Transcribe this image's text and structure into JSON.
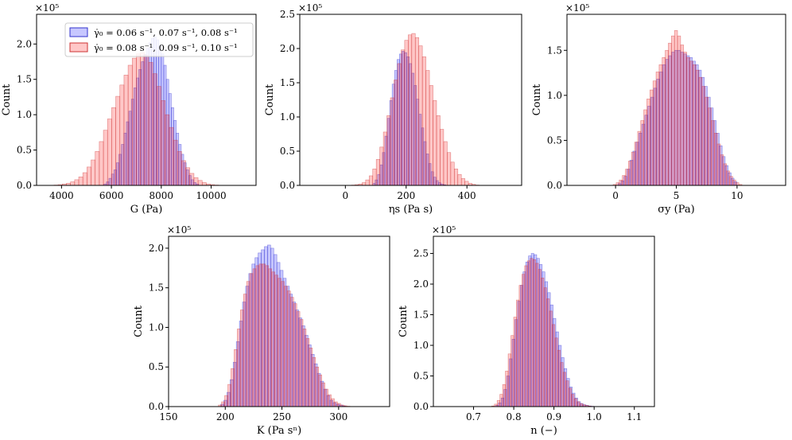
{
  "colors": {
    "blue_fill": "#0000ff",
    "blue_edge": "#3333cc",
    "red_fill": "#ff0000",
    "red_edge": "#cc3333",
    "fill_opacity": 0.22
  },
  "legend": {
    "location": "upper-right of first panel",
    "entries": [
      {
        "series": "blue",
        "label": "γ̇₀ = 0.06 s⁻¹, 0.07 s⁻¹, 0.08 s⁻¹"
      },
      {
        "series": "red",
        "label": "γ̇₀ = 0.08 s⁻¹, 0.09 s⁻¹, 0.10 s⁻¹"
      }
    ]
  },
  "chart_data": [
    {
      "type": "bar",
      "subtype": "histogram",
      "xlabel": "G (Pa)",
      "ylabel": "Count",
      "multiplier": "×10⁵",
      "xlim": [
        3000,
        11800
      ],
      "ylim": [
        0,
        2.42
      ],
      "xticks": [
        4000,
        6000,
        8000,
        10000
      ],
      "xtick_labels": [
        "4000",
        "6000",
        "8000",
        "10000"
      ],
      "yticks": [
        0.0,
        0.5,
        1.0,
        1.5,
        2.0
      ],
      "ytick_labels": [
        "0.0",
        "0.5",
        "1.0",
        "1.5",
        "2.0"
      ],
      "series": [
        {
          "name": "blue",
          "edges_range": [
            5700,
            9500
          ],
          "bins": 38,
          "values": [
            0.02,
            0.05,
            0.1,
            0.16,
            0.22,
            0.32,
            0.44,
            0.58,
            0.74,
            0.9,
            1.05,
            1.22,
            1.38,
            1.52,
            1.64,
            1.75,
            1.85,
            1.94,
            2.02,
            2.08,
            2.1,
            2.06,
            1.98,
            1.86,
            1.7,
            1.5,
            1.3,
            1.1,
            0.92,
            0.74,
            0.58,
            0.44,
            0.32,
            0.22,
            0.14,
            0.08,
            0.04,
            0.02
          ]
        },
        {
          "name": "red",
          "edges_range": [
            3700,
            10300
          ],
          "bins": 40,
          "values": [
            0.005,
            0.01,
            0.02,
            0.03,
            0.05,
            0.08,
            0.12,
            0.18,
            0.26,
            0.36,
            0.48,
            0.62,
            0.78,
            0.94,
            1.1,
            1.26,
            1.42,
            1.56,
            1.7,
            1.8,
            1.86,
            1.88,
            1.84,
            1.74,
            1.58,
            1.4,
            1.2,
            1.0,
            0.82,
            0.64,
            0.48,
            0.35,
            0.25,
            0.17,
            0.11,
            0.07,
            0.04,
            0.02,
            0.01,
            0.005
          ]
        }
      ]
    },
    {
      "type": "bar",
      "subtype": "histogram",
      "xlabel": "ηs (Pa s)",
      "ylabel": "Count",
      "multiplier": "×10⁵",
      "xlim": [
        -150,
        580
      ],
      "ylim": [
        0,
        2.5
      ],
      "xticks": [
        0,
        200,
        400
      ],
      "xtick_labels": [
        "0",
        "200",
        "400"
      ],
      "yticks": [
        0.0,
        0.5,
        1.0,
        1.5,
        2.0,
        2.5
      ],
      "ytick_labels": [
        "0.0",
        "0.5",
        "1.0",
        "1.5",
        "2.0",
        "2.5"
      ],
      "series": [
        {
          "name": "blue",
          "edges_range": [
            90,
            330
          ],
          "bins": 30,
          "values": [
            0.03,
            0.08,
            0.16,
            0.3,
            0.48,
            0.72,
            0.98,
            1.24,
            1.48,
            1.68,
            1.84,
            1.92,
            1.96,
            1.94,
            1.88,
            1.78,
            1.64,
            1.46,
            1.26,
            1.04,
            0.84,
            0.64,
            0.46,
            0.32,
            0.2,
            0.12,
            0.07,
            0.04,
            0.02,
            0.01
          ]
        },
        {
          "name": "red",
          "edges_range": [
            20,
            440
          ],
          "bins": 36,
          "values": [
            0.005,
            0.01,
            0.02,
            0.04,
            0.08,
            0.14,
            0.24,
            0.38,
            0.56,
            0.78,
            1.02,
            1.28,
            1.54,
            1.78,
            1.98,
            2.12,
            2.2,
            2.22,
            2.16,
            2.04,
            1.88,
            1.68,
            1.46,
            1.24,
            1.02,
            0.82,
            0.64,
            0.48,
            0.34,
            0.24,
            0.16,
            0.1,
            0.06,
            0.03,
            0.015,
            0.005
          ]
        }
      ]
    },
    {
      "type": "bar",
      "subtype": "histogram",
      "xlabel": "σy (Pa)",
      "ylabel": "Count",
      "multiplier": "×10⁵",
      "xlim": [
        -4,
        14
      ],
      "ylim": [
        0,
        1.9
      ],
      "xticks": [
        0,
        5,
        10
      ],
      "xtick_labels": [
        "0",
        "5",
        "10"
      ],
      "yticks": [
        0.0,
        0.5,
        1.0,
        1.5
      ],
      "ytick_labels": [
        "0.0",
        "0.5",
        "1.0",
        "1.5"
      ],
      "series": [
        {
          "name": "blue",
          "edges_range": [
            0.2,
            10.0
          ],
          "bins": 40,
          "values": [
            0.02,
            0.05,
            0.1,
            0.18,
            0.28,
            0.38,
            0.48,
            0.58,
            0.68,
            0.78,
            0.88,
            0.98,
            1.08,
            1.18,
            1.26,
            1.34,
            1.4,
            1.44,
            1.48,
            1.5,
            1.5,
            1.48,
            1.46,
            1.44,
            1.42,
            1.38,
            1.34,
            1.28,
            1.2,
            1.1,
            0.98,
            0.86,
            0.72,
            0.58,
            0.44,
            0.32,
            0.22,
            0.14,
            0.08,
            0.04
          ]
        },
        {
          "name": "red",
          "edges_range": [
            -0.2,
            10.4
          ],
          "bins": 42,
          "values": [
            0.01,
            0.03,
            0.06,
            0.11,
            0.18,
            0.27,
            0.37,
            0.48,
            0.6,
            0.72,
            0.84,
            0.96,
            1.06,
            1.16,
            1.26,
            1.34,
            1.42,
            1.5,
            1.58,
            1.66,
            1.72,
            1.66,
            1.56,
            1.48,
            1.42,
            1.38,
            1.34,
            1.28,
            1.2,
            1.1,
            0.98,
            0.86,
            0.72,
            0.58,
            0.46,
            0.34,
            0.24,
            0.16,
            0.1,
            0.06,
            0.03,
            0.01
          ]
        }
      ]
    },
    {
      "type": "bar",
      "subtype": "histogram",
      "xlabel": "K (Pa sⁿ)",
      "ylabel": "Count",
      "multiplier": "×10⁵",
      "xlim": [
        150,
        345
      ],
      "ylim": [
        0,
        2.15
      ],
      "xticks": [
        150,
        200,
        250,
        300
      ],
      "xtick_labels": [
        "150",
        "200",
        "250",
        "300"
      ],
      "yticks": [
        0.0,
        0.5,
        1.0,
        1.5,
        2.0
      ],
      "ytick_labels": [
        "0.0",
        "0.5",
        "1.0",
        "1.5",
        "2.0"
      ],
      "series": [
        {
          "name": "blue",
          "edges_range": [
            196,
            306
          ],
          "bins": 40,
          "values": [
            0.03,
            0.08,
            0.18,
            0.34,
            0.56,
            0.82,
            1.08,
            1.32,
            1.52,
            1.68,
            1.8,
            1.88,
            1.94,
            1.98,
            2.02,
            2.04,
            2.0,
            1.92,
            1.82,
            1.72,
            1.62,
            1.52,
            1.42,
            1.32,
            1.22,
            1.12,
            1.02,
            0.9,
            0.78,
            0.66,
            0.54,
            0.42,
            0.32,
            0.22,
            0.14,
            0.08,
            0.05,
            0.03,
            0.02,
            0.01
          ]
        },
        {
          "name": "red",
          "edges_range": [
            194,
            310
          ],
          "bins": 42,
          "values": [
            0.02,
            0.06,
            0.14,
            0.28,
            0.48,
            0.72,
            0.98,
            1.22,
            1.42,
            1.58,
            1.68,
            1.74,
            1.78,
            1.8,
            1.8,
            1.78,
            1.74,
            1.7,
            1.66,
            1.62,
            1.58,
            1.52,
            1.46,
            1.38,
            1.3,
            1.2,
            1.1,
            0.98,
            0.86,
            0.74,
            0.62,
            0.5,
            0.4,
            0.3,
            0.22,
            0.15,
            0.1,
            0.06,
            0.04,
            0.02,
            0.01,
            0.005
          ]
        }
      ]
    },
    {
      "type": "bar",
      "subtype": "histogram",
      "xlabel": "n (−)",
      "ylabel": "Count",
      "multiplier": "×10⁵",
      "xlim": [
        0.6,
        1.15
      ],
      "ylim": [
        0,
        2.78
      ],
      "xticks": [
        0.7,
        0.8,
        0.9,
        1.0,
        1.1
      ],
      "xtick_labels": [
        "0.7",
        "0.8",
        "0.9",
        "1.0",
        "1.1"
      ],
      "yticks": [
        0.0,
        0.5,
        1.0,
        1.5,
        2.0,
        2.5
      ],
      "ytick_labels": [
        "0.0",
        "0.5",
        "1.0",
        "1.5",
        "2.0",
        "2.5"
      ],
      "series": [
        {
          "name": "blue",
          "edges_range": [
            0.755,
            1.0
          ],
          "bins": 36,
          "values": [
            0.02,
            0.06,
            0.14,
            0.28,
            0.5,
            0.78,
            1.1,
            1.42,
            1.72,
            1.98,
            2.2,
            2.36,
            2.46,
            2.5,
            2.48,
            2.42,
            2.32,
            2.2,
            2.04,
            1.86,
            1.66,
            1.44,
            1.22,
            1.0,
            0.8,
            0.62,
            0.46,
            0.32,
            0.22,
            0.14,
            0.08,
            0.05,
            0.03,
            0.02,
            0.01,
            0.005
          ]
        },
        {
          "name": "red",
          "edges_range": [
            0.745,
            1.005
          ],
          "bins": 38,
          "values": [
            0.01,
            0.04,
            0.1,
            0.2,
            0.36,
            0.58,
            0.86,
            1.16,
            1.46,
            1.74,
            1.98,
            2.16,
            2.3,
            2.38,
            2.42,
            2.4,
            2.34,
            2.24,
            2.1,
            1.94,
            1.76,
            1.56,
            1.34,
            1.12,
            0.92,
            0.72,
            0.56,
            0.42,
            0.3,
            0.2,
            0.13,
            0.08,
            0.05,
            0.03,
            0.02,
            0.01,
            0.005,
            0.002
          ]
        }
      ]
    }
  ]
}
